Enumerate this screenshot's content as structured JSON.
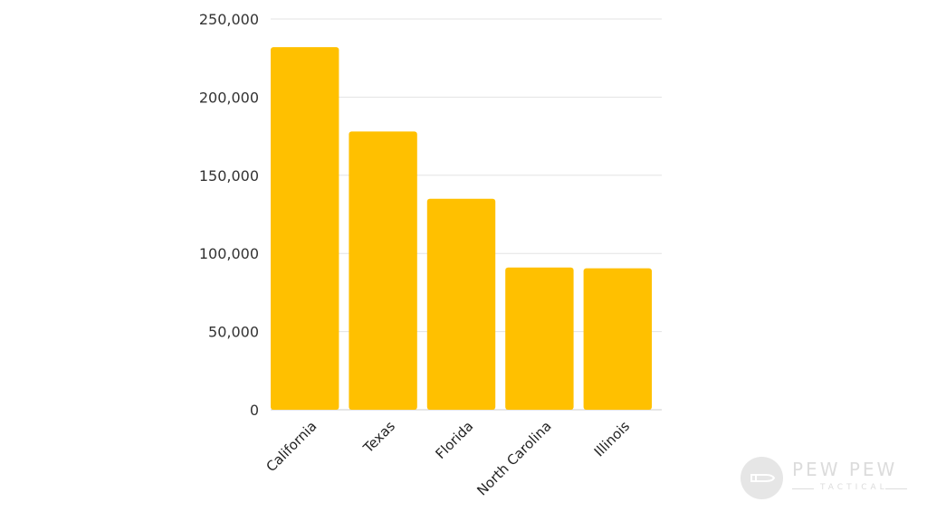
{
  "chart_data": {
    "type": "bar",
    "categories": [
      "California",
      "Texas",
      "Florida",
      "North Carolina",
      "Illinois"
    ],
    "values": [
      232000,
      178000,
      135000,
      91000,
      90500
    ],
    "title": "",
    "xlabel": "",
    "ylabel": "",
    "ylim": [
      0,
      250000
    ],
    "yticks": [
      "0",
      "50,000",
      "100,000",
      "150,000",
      "200,000",
      "250,000"
    ],
    "grid": true,
    "bar_color": "#FFC000",
    "grid_color": "#e3e3e3"
  },
  "watermark": {
    "brand": "PEW PEW",
    "sub": "TACTICAL",
    "icon": "bullet-logo-icon"
  }
}
